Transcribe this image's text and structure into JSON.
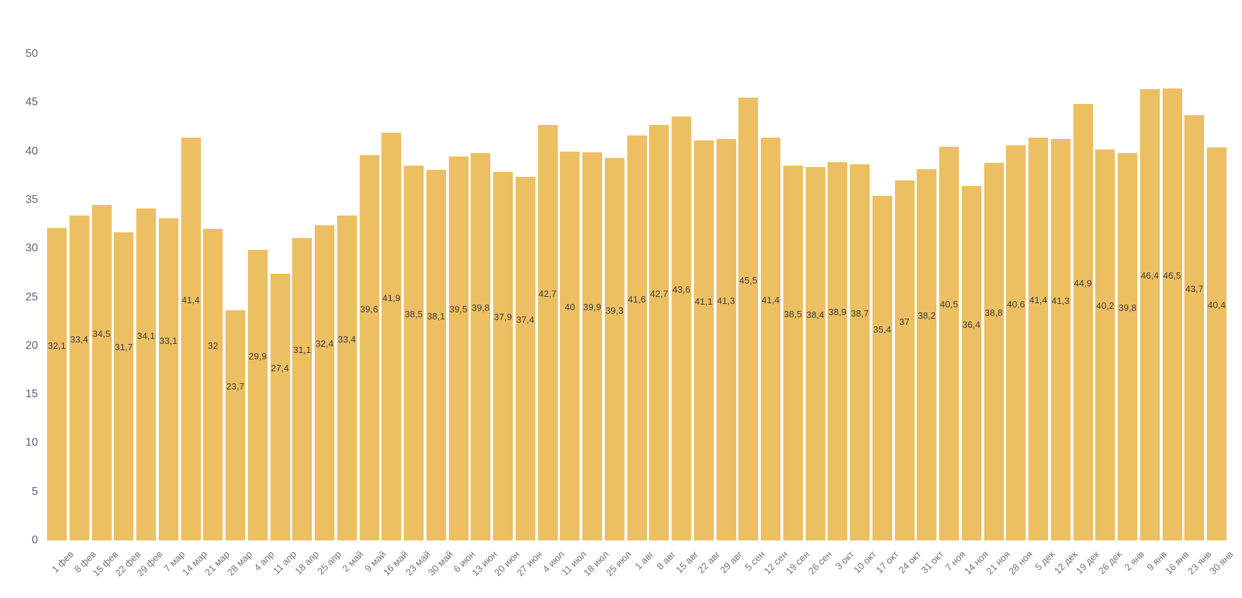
{
  "chart_data": {
    "type": "bar",
    "title": "",
    "xlabel": "",
    "ylabel": "",
    "ylim": [
      0,
      50
    ],
    "yticks": [
      0,
      5,
      10,
      15,
      20,
      25,
      30,
      35,
      40,
      45,
      50
    ],
    "ytick_labels": [
      "0",
      "5",
      "10",
      "15",
      "20",
      "25",
      "30",
      "35",
      "40",
      "45",
      "50"
    ],
    "grid": "off",
    "legend": "none",
    "bar_color": "#ecbf63",
    "value_label_color": "#3c3c40",
    "ytick_label_color": "#5f6368",
    "xtick_label_color": "#737377",
    "background_color": "#ffffff",
    "categories": [
      "1 фев",
      "8 фев",
      "15 фев",
      "22 фев",
      "29 фев",
      "7 мар",
      "14 мар",
      "21 мар",
      "28 мар",
      "4 апр",
      "11 апр",
      "18 апр",
      "25 апр",
      "2 май",
      "9 май",
      "16 май",
      "23 май",
      "30 май",
      "6 июн",
      "13 июн",
      "20 июн",
      "27 июн",
      "4 июл",
      "11 июл",
      "18 июл",
      "25 июл",
      "1 авг",
      "8 авг",
      "15 авг",
      "22 авг",
      "29 авг",
      "5 сен",
      "12 сен",
      "19 сен",
      "26 сен",
      "3 окт",
      "10 окт",
      "17 окт",
      "24 окт",
      "31 окт",
      "7 ноя",
      "14 ноя",
      "21 ноя",
      "28 ноя",
      "5 дек",
      "12 дек",
      "19 дек",
      "26 дек",
      "2 янв",
      "9 янв",
      "16 янв",
      "23 янв",
      "30 янв"
    ],
    "values": [
      32.1,
      33.4,
      34.5,
      31.7,
      34.1,
      33.1,
      41.4,
      32,
      23.7,
      29.9,
      27.4,
      31.1,
      32.4,
      33.4,
      39.6,
      41.9,
      38.5,
      38.1,
      39.5,
      39.8,
      37.9,
      37.4,
      42.7,
      40,
      39.9,
      39.3,
      41.6,
      42.7,
      43.6,
      41.1,
      41.3,
      45.5,
      41.4,
      38.5,
      38.4,
      38.9,
      38.7,
      35.4,
      37,
      38.2,
      40.5,
      36.4,
      38.8,
      40.6,
      41.4,
      41.3,
      44.9,
      40.2,
      39.8,
      46.4,
      46.5,
      43.7,
      40.4
    ],
    "value_labels": [
      "32,1",
      "33,4",
      "34,5",
      "31,7",
      "34,1",
      "33,1",
      "41,4",
      "32",
      "23,7",
      "29,9",
      "27,4",
      "31,1",
      "32,4",
      "33,4",
      "39,6",
      "41,9",
      "38,5",
      "38,1",
      "39,5",
      "39,8",
      "37,9",
      "37,4",
      "42,7",
      "40",
      "39,9",
      "39,3",
      "41,6",
      "42,7",
      "43,6",
      "41,1",
      "41,3",
      "45,5",
      "41,4",
      "38,5",
      "38,4",
      "38,9",
      "38,7",
      "35,4",
      "37",
      "38,2",
      "40,5",
      "36,4",
      "38,8",
      "40,6",
      "41,4",
      "41,3",
      "44,9",
      "40,2",
      "39,8",
      "46,4",
      "46,5",
      "43,7",
      "40,4"
    ]
  }
}
